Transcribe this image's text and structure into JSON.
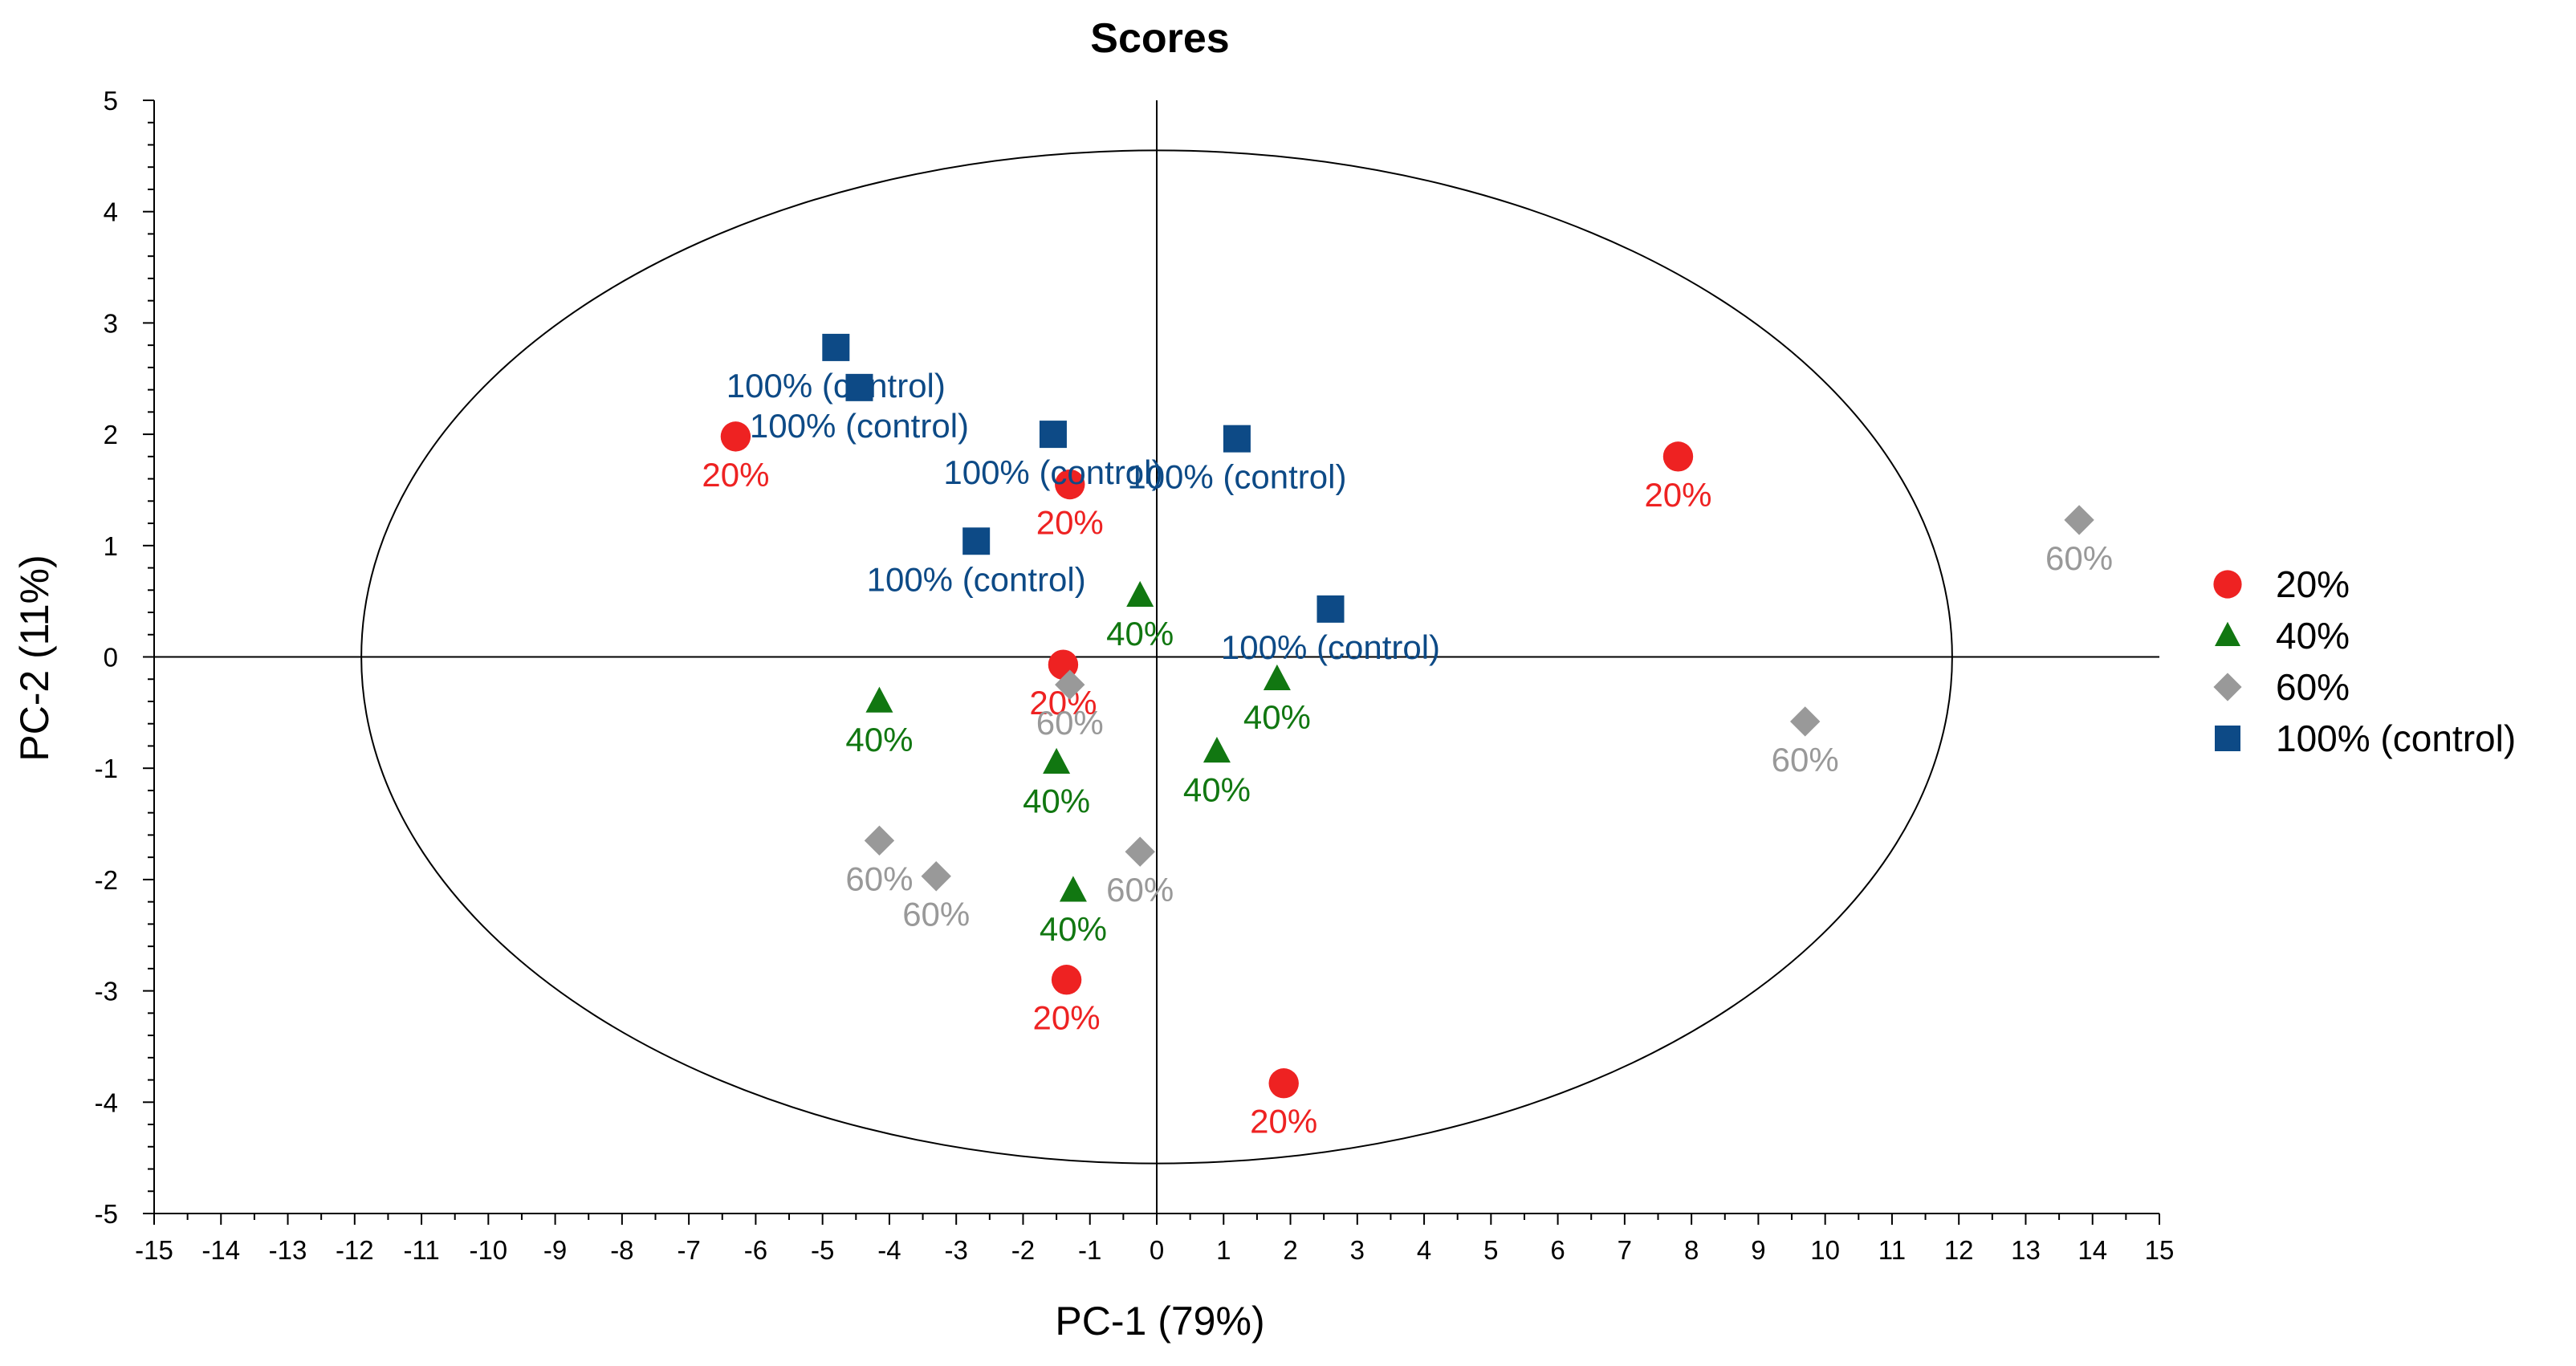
{
  "chart_data": {
    "type": "scatter",
    "title": "Scores",
    "xlabel": "PC-1 (79%)",
    "ylabel": "PC-2 (11%)",
    "xlim": [
      -15,
      15
    ],
    "ylim": [
      -5,
      5
    ],
    "xticks": [
      -15,
      -14,
      -13,
      -12,
      -11,
      -10,
      -9,
      -8,
      -7,
      -6,
      -5,
      -4,
      -3,
      -2,
      -1,
      0,
      1,
      2,
      3,
      4,
      5,
      6,
      7,
      8,
      9,
      10,
      11,
      12,
      13,
      14,
      15
    ],
    "yticks": [
      5,
      4,
      3,
      2,
      1,
      0,
      -1,
      -2,
      -3,
      -4,
      -5
    ],
    "ellipse": {
      "cx": 0,
      "cy": 0,
      "rx": 11.9,
      "ry": 4.55
    },
    "series": [
      {
        "name": "20%",
        "label": "20%",
        "marker": "circle",
        "color": "#ee2222",
        "points": [
          {
            "x": -6.3,
            "y": 1.98
          },
          {
            "x": -1.3,
            "y": 1.55
          },
          {
            "x": -1.4,
            "y": -0.07
          },
          {
            "x": -1.35,
            "y": -2.9
          },
          {
            "x": 1.9,
            "y": -3.83
          },
          {
            "x": 7.8,
            "y": 1.8
          }
        ]
      },
      {
        "name": "40%",
        "label": "40%",
        "marker": "triangle",
        "color": "#117711",
        "points": [
          {
            "x": -4.15,
            "y": -0.4
          },
          {
            "x": -1.5,
            "y": -0.95
          },
          {
            "x": -1.25,
            "y": -2.1
          },
          {
            "x": -0.25,
            "y": 0.55
          },
          {
            "x": 0.9,
            "y": -0.85
          },
          {
            "x": 1.8,
            "y": -0.2
          }
        ]
      },
      {
        "name": "60%",
        "label": "60%",
        "marker": "diamond",
        "color": "#999999",
        "points": [
          {
            "x": -4.15,
            "y": -1.65
          },
          {
            "x": -3.3,
            "y": -1.97
          },
          {
            "x": -1.3,
            "y": -0.25
          },
          {
            "x": -0.25,
            "y": -1.75
          },
          {
            "x": 9.7,
            "y": -0.58
          },
          {
            "x": 13.8,
            "y": 1.23
          }
        ]
      },
      {
        "name": "100% (control)",
        "label": "100% (control)",
        "marker": "square",
        "color": "#0d4a86",
        "points": [
          {
            "x": -4.8,
            "y": 2.78
          },
          {
            "x": -4.45,
            "y": 2.42
          },
          {
            "x": -2.7,
            "y": 1.04
          },
          {
            "x": -1.55,
            "y": 2.0
          },
          {
            "x": 1.2,
            "y": 1.96
          },
          {
            "x": 2.6,
            "y": 0.43
          }
        ]
      }
    ],
    "legend": [
      "20%",
      "40%",
      "60%",
      "100% (control)"
    ],
    "legend_position": "right"
  }
}
